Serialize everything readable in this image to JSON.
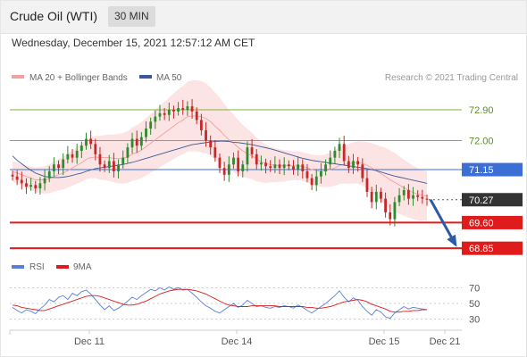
{
  "header": {
    "title": "Crude Oil (WTI)",
    "interval": "30 MIN"
  },
  "datetime": "Wednesday, December 15, 2021 12:57:12 AM CET",
  "colors": {
    "bollinger": "#f4a0a0",
    "bollinger_fill": "#fde3e3",
    "ma50": "#3b5998",
    "bull": "#2d8a2d",
    "bear": "#c62828",
    "target": "#7cb342",
    "pivot": "#3b6fd6",
    "support": "#e01b1b",
    "rsi": "#5b7fd6",
    "rsi_ma": "#e01b1b",
    "arrow": "#2b5aa8",
    "last": "#333333"
  },
  "chart_data": [
    {
      "type": "candlestick",
      "legend": [
        {
          "name": "MA 20 + Bollinger Bands",
          "color": "#f4a0a0"
        },
        {
          "name": "MA 50",
          "color": "#3b5998"
        }
      ],
      "legend_placement": "top-left",
      "credit": "Research © 2021 Trading Central",
      "ylim": [
        68.75,
        73.5
      ],
      "x_ticks": [
        "Dec 11",
        "Dec 14",
        "Dec 15",
        "Dec 21"
      ],
      "levels": [
        {
          "label": "72.90",
          "value": 72.9,
          "kind": "target"
        },
        {
          "label": "72.00",
          "value": 72.0,
          "kind": "target"
        },
        {
          "label": "71.15",
          "value": 71.15,
          "kind": "pivot"
        },
        {
          "label": "70.27",
          "value": 70.27,
          "kind": "last"
        },
        {
          "label": "69.60",
          "value": 69.6,
          "kind": "support"
        },
        {
          "label": "68.85",
          "value": 68.85,
          "kind": "support"
        }
      ],
      "close": [
        70.95,
        70.85,
        70.75,
        70.65,
        70.7,
        70.6,
        70.75,
        70.9,
        71.1,
        71.3,
        71.2,
        71.45,
        71.6,
        71.5,
        71.7,
        71.85,
        72.05,
        71.9,
        71.6,
        71.3,
        71.2,
        71.4,
        71.1,
        71.3,
        71.5,
        71.8,
        72.05,
        71.85,
        72.1,
        72.35,
        72.55,
        72.7,
        72.8,
        72.75,
        72.9,
        72.85,
        72.95,
        72.9,
        73.0,
        72.85,
        72.6,
        72.3,
        72.0,
        71.8,
        71.5,
        71.2,
        71.0,
        71.3,
        71.5,
        71.1,
        71.3,
        71.8,
        71.6,
        71.3,
        71.35,
        71.25,
        71.2,
        71.3,
        71.2,
        71.3,
        71.25,
        71.15,
        71.3,
        71.1,
        70.9,
        70.7,
        70.95,
        71.1,
        71.3,
        71.5,
        71.7,
        71.9,
        71.4,
        71.2,
        71.4,
        71.3,
        70.9,
        70.5,
        70.2,
        70.5,
        70.3,
        69.9,
        69.7,
        70.2,
        70.4,
        70.55,
        70.3,
        70.4,
        70.35,
        70.3,
        70.27
      ],
      "ma20": [
        71.1,
        71.05,
        71.0,
        70.95,
        70.9,
        70.85,
        70.85,
        70.85,
        70.88,
        70.95,
        71.0,
        71.05,
        71.12,
        71.2,
        71.28,
        71.35,
        71.45,
        71.5,
        71.52,
        71.5,
        71.5,
        71.5,
        71.48,
        71.47,
        71.48,
        71.52,
        71.6,
        71.65,
        71.72,
        71.82,
        71.92,
        72.02,
        72.12,
        72.22,
        72.32,
        72.42,
        72.52,
        72.6,
        72.7,
        72.72,
        72.72,
        72.7,
        72.65,
        72.55,
        72.42,
        72.3,
        72.15,
        72.02,
        71.92,
        71.8,
        71.7,
        71.62,
        71.55,
        71.45,
        71.38,
        71.32,
        71.3,
        71.28,
        71.27,
        71.26,
        71.27,
        71.26,
        71.26,
        71.24,
        71.2,
        71.15,
        71.12,
        71.1,
        71.12,
        71.15,
        71.2,
        71.27,
        71.3,
        71.32,
        71.35,
        71.36,
        71.33,
        71.28,
        71.2,
        71.12,
        71.03,
        70.95,
        70.85,
        70.78,
        70.7,
        70.62,
        70.55,
        70.48,
        70.43,
        70.4,
        70.38
      ],
      "ma50": [
        71.55,
        71.42,
        71.32,
        71.22,
        71.13,
        71.05,
        71.0,
        70.95,
        70.93,
        70.92,
        70.92,
        70.93,
        70.95,
        70.98,
        71.02,
        71.05,
        71.1,
        71.14,
        71.18,
        71.2,
        71.22,
        71.24,
        71.26,
        71.28,
        71.3,
        71.33,
        71.36,
        71.4,
        71.44,
        71.48,
        71.52,
        71.56,
        71.6,
        71.64,
        71.68,
        71.72,
        71.76,
        71.8,
        71.84,
        71.88,
        71.9,
        71.92,
        71.94,
        71.96,
        71.97,
        71.98,
        71.98,
        71.97,
        71.95,
        71.94,
        71.92,
        71.9,
        71.88,
        71.85,
        71.82,
        71.79,
        71.76,
        71.72,
        71.68,
        71.64,
        71.6,
        71.56,
        71.52,
        71.48,
        71.45,
        71.42,
        71.4,
        71.38,
        71.36,
        71.34,
        71.32,
        71.3,
        71.28,
        71.26,
        71.24,
        71.22,
        71.2,
        71.18,
        71.15,
        71.12,
        71.08,
        71.04,
        71.0,
        70.96,
        70.93,
        70.9,
        70.87,
        70.84,
        70.81,
        70.78,
        70.75
      ],
      "bb_width": [
        0.3,
        0.3,
        0.3,
        0.32,
        0.34,
        0.36,
        0.38,
        0.4,
        0.42,
        0.44,
        0.46,
        0.48,
        0.5,
        0.52,
        0.54,
        0.56,
        0.58,
        0.6,
        0.62,
        0.64,
        0.66,
        0.68,
        0.7,
        0.72,
        0.74,
        0.76,
        0.78,
        0.8,
        0.82,
        0.84,
        0.86,
        0.88,
        0.9,
        0.92,
        0.94,
        0.96,
        0.98,
        1.0,
        1.02,
        1.04,
        1.04,
        1.04,
        1.02,
        1.0,
        0.98,
        0.96,
        0.92,
        0.88,
        0.84,
        0.8,
        0.76,
        0.72,
        0.68,
        0.64,
        0.6,
        0.56,
        0.52,
        0.5,
        0.48,
        0.46,
        0.44,
        0.42,
        0.42,
        0.42,
        0.43,
        0.44,
        0.45,
        0.46,
        0.48,
        0.5,
        0.52,
        0.54,
        0.56,
        0.58,
        0.6,
        0.62,
        0.64,
        0.68,
        0.72,
        0.76,
        0.8,
        0.84,
        0.86,
        0.86,
        0.84,
        0.82,
        0.8,
        0.78,
        0.76,
        0.74,
        0.72
      ]
    },
    {
      "type": "line",
      "legend": [
        {
          "name": "RSI",
          "color": "#5b7fd6"
        },
        {
          "name": "9MA",
          "color": "#e01b1b"
        }
      ],
      "ylim": [
        25,
        75
      ],
      "y_ticks": [
        70,
        50,
        30
      ],
      "series": [
        {
          "name": "RSI",
          "values": [
            45,
            41,
            38,
            42,
            40,
            37,
            43,
            48,
            55,
            52,
            58,
            60,
            55,
            63,
            60,
            65,
            67,
            62,
            55,
            48,
            42,
            47,
            41,
            44,
            48,
            53,
            58,
            55,
            60,
            64,
            68,
            66,
            70,
            67,
            71,
            68,
            70,
            67,
            68,
            63,
            58,
            52,
            47,
            44,
            40,
            38,
            42,
            46,
            50,
            45,
            48,
            54,
            50,
            46,
            47,
            45,
            44,
            46,
            45,
            47,
            46,
            44,
            48,
            45,
            41,
            38,
            42,
            46,
            50,
            55,
            60,
            66,
            58,
            52,
            57,
            54,
            46,
            40,
            35,
            42,
            39,
            33,
            31,
            38,
            42,
            46,
            43,
            45,
            44,
            43,
            42
          ]
        },
        {
          "name": "9MA",
          "values": [
            48,
            47,
            45,
            44,
            43,
            42,
            41,
            41,
            43,
            45,
            47,
            49,
            51,
            53,
            55,
            57,
            59,
            60,
            60,
            59,
            57,
            55,
            53,
            51,
            49,
            48,
            48,
            49,
            51,
            53,
            56,
            59,
            62,
            64,
            66,
            67,
            68,
            68,
            68,
            67,
            66,
            64,
            62,
            59,
            56,
            53,
            50,
            48,
            47,
            46,
            46,
            46,
            47,
            47,
            47,
            47,
            47,
            47,
            46,
            46,
            46,
            46,
            46,
            46,
            45,
            45,
            44,
            44,
            45,
            46,
            48,
            50,
            52,
            53,
            54,
            55,
            54,
            52,
            49,
            47,
            45,
            43,
            40,
            39,
            39,
            40,
            40,
            41,
            41,
            42,
            42
          ]
        }
      ]
    }
  ]
}
